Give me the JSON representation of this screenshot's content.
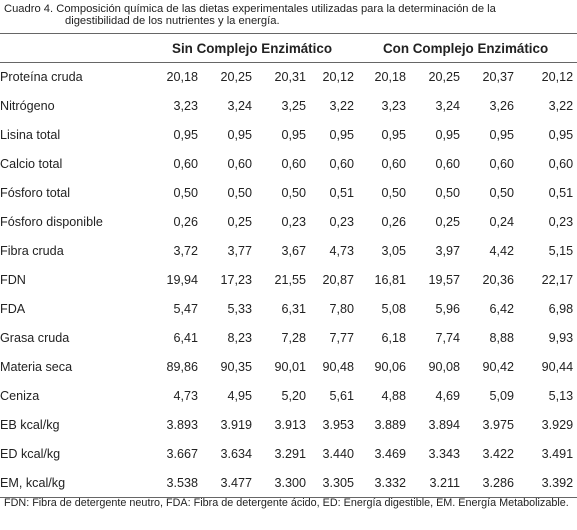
{
  "caption": {
    "line1": "Cuadro 4. Composición química de las dietas experimentales utilizadas para la determinación de la",
    "line2": "digestibilidad de los nutrientes y la energía."
  },
  "headers": {
    "group1": "Sin Complejo Enzimático",
    "group2": "Con Complejo Enzimático"
  },
  "rows": [
    {
      "label": "Proteína cruda",
      "values": [
        "20,18",
        "20,25",
        "20,31",
        "20,12",
        "20,18",
        "20,25",
        "20,37",
        "20,12"
      ]
    },
    {
      "label": "Nitrógeno",
      "values": [
        "3,23",
        "3,24",
        "3,25",
        "3,22",
        "3,23",
        "3,24",
        "3,26",
        "3,22"
      ]
    },
    {
      "label": "Lisina total",
      "values": [
        "0,95",
        "0,95",
        "0,95",
        "0,95",
        "0,95",
        "0,95",
        "0,95",
        "0,95"
      ]
    },
    {
      "label": "Calcio total",
      "values": [
        "0,60",
        "0,60",
        "0,60",
        "0,60",
        "0,60",
        "0,60",
        "0,60",
        "0,60"
      ]
    },
    {
      "label": "Fósforo total",
      "values": [
        "0,50",
        "0,50",
        "0,50",
        "0,51",
        "0,50",
        "0,50",
        "0,50",
        "0,51"
      ]
    },
    {
      "label": "Fósforo disponible",
      "values": [
        "0,26",
        "0,25",
        "0,23",
        "0,23",
        "0,26",
        "0,25",
        "0,24",
        "0,23"
      ]
    },
    {
      "label": "Fibra cruda",
      "values": [
        "3,72",
        "3,77",
        "3,67",
        "4,73",
        "3,05",
        "3,97",
        "4,42",
        "5,15"
      ]
    },
    {
      "label": "FDN",
      "values": [
        "19,94",
        "17,23",
        "21,55",
        "20,87",
        "16,81",
        "19,57",
        "20,36",
        "22,17"
      ]
    },
    {
      "label": "FDA",
      "values": [
        "5,47",
        "5,33",
        "6,31",
        "7,80",
        "5,08",
        "5,96",
        "6,42",
        "6,98"
      ]
    },
    {
      "label": "Grasa cruda",
      "values": [
        "6,41",
        "8,23",
        "7,28",
        "7,77",
        "6,18",
        "7,74",
        "8,88",
        "9,93"
      ]
    },
    {
      "label": "Materia seca",
      "values": [
        "89,86",
        "90,35",
        "90,01",
        "90,48",
        "90,06",
        "90,08",
        "90,42",
        "90,44"
      ]
    },
    {
      "label": "Ceniza",
      "values": [
        "4,73",
        "4,95",
        "5,20",
        "5,61",
        "4,88",
        "4,69",
        "5,09",
        "5,13"
      ]
    },
    {
      "label": "EB kcal/kg",
      "values": [
        "3.893",
        "3.919",
        "3.913",
        "3.953",
        "3.889",
        "3.894",
        "3.975",
        "3.929"
      ]
    },
    {
      "label": "ED kcal/kg",
      "values": [
        "3.667",
        "3.634",
        "3.291",
        "3.440",
        "3.469",
        "3.343",
        "3.422",
        "3.491"
      ]
    },
    {
      "label": "EM, kcal/kg",
      "values": [
        "3.538",
        "3.477",
        "3.300",
        "3.305",
        "3.332",
        "3.211",
        "3.286",
        "3.392"
      ]
    }
  ],
  "footnote": "FDN: Fibra de detergente neutro, FDA: Fibra de detergente ácido, ED: Energía digestible, EM. Energía Metabolizable."
}
